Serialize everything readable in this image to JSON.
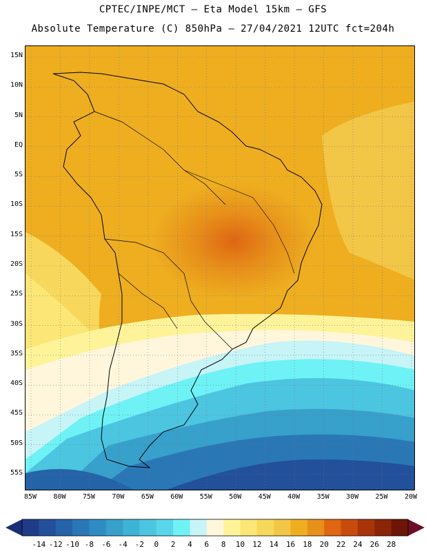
{
  "header": {
    "line1": "CPTEC/INPE/MCT –  Eta Model 15km – GFS",
    "line2": "Absolute Temperature (C) 850hPa – 27/04/2021 12UTC fct=204h"
  },
  "map": {
    "lat_labels": [
      "15N",
      "10N",
      "5N",
      "EQ",
      "5S",
      "10S",
      "15S",
      "20S",
      "25S",
      "30S",
      "35S",
      "40S",
      "45S",
      "50S",
      "55S"
    ],
    "lon_labels": [
      "85W",
      "80W",
      "75W",
      "70W",
      "65W",
      "60W",
      "55W",
      "50W",
      "45W",
      "40W",
      "35W",
      "30W",
      "25W",
      "20W"
    ]
  },
  "colorbar": {
    "labels": [
      "-14",
      "-12",
      "-10",
      "-8",
      "-6",
      "-4",
      "-2",
      "0",
      "2",
      "4",
      "6",
      "8",
      "10",
      "12",
      "14",
      "16",
      "18",
      "20",
      "22",
      "24",
      "26",
      "28"
    ],
    "colors": [
      "#1e3c88",
      "#22509b",
      "#2563a8",
      "#2a77b6",
      "#2f8cc2",
      "#37a0cb",
      "#3fb3d6",
      "#4cc5e0",
      "#5ad6ea",
      "#6ef2f5",
      "#c6f4f7",
      "#fff6dc",
      "#fff39a",
      "#fbe676",
      "#f8d85c",
      "#f2c646",
      "#eeae20",
      "#e7901a",
      "#df6612",
      "#c84a0d",
      "#a8350a",
      "#8a2508",
      "#6c1606"
    ],
    "end_colors": {
      "low": "#1a2e75",
      "high": "#6b0f25"
    }
  }
}
